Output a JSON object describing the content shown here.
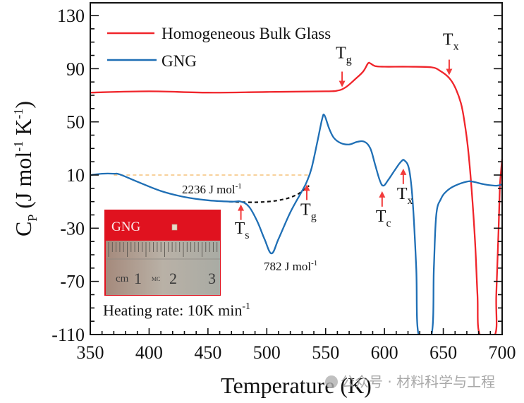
{
  "chart_data": {
    "type": "line",
    "title": "",
    "xlabel": "Temperature (K)",
    "ylabel": "C_P (J mol^-1 K^-1)",
    "ylabel_parts": {
      "main": "C",
      "sub": "P",
      "rest1": " (J mol",
      "sup1": "-1",
      "rest2": " K",
      "sup2": "-1",
      "rest3": ")"
    },
    "xlim": [
      350,
      700
    ],
    "ylim": [
      -110,
      130
    ],
    "xticks": [
      350,
      400,
      450,
      500,
      550,
      600,
      650,
      700
    ],
    "xtick_labels": [
      "350",
      "400",
      "450",
      "500",
      "550",
      "600",
      "650",
      "700"
    ],
    "yticks": [
      130,
      90,
      50,
      10,
      -30,
      -70,
      -110
    ],
    "ytick_labels": [
      "130",
      "90",
      "50",
      "10",
      "-30",
      "-70",
      "-110"
    ],
    "grid": false,
    "legend_position": "top-left",
    "series": [
      {
        "name": "Homogeneous Bulk Glass",
        "color": "#f0252b",
        "x": [
          350,
          400,
          450,
          500,
          550,
          560,
          567,
          575,
          582,
          586,
          588,
          592,
          600,
          620,
          640,
          648,
          655,
          660,
          665,
          668,
          671,
          674,
          677,
          679,
          681,
          694,
          695,
          697,
          698,
          699,
          700
        ],
        "y": [
          72,
          73,
          72,
          72.5,
          73,
          73.5,
          76,
          82,
          88,
          94,
          94,
          92,
          91.5,
          91.5,
          91,
          88,
          83,
          76,
          64,
          50,
          30,
          0,
          -40,
          -80,
          -110,
          -110,
          -80,
          -30,
          0,
          12,
          22
        ]
      },
      {
        "name": "GNG",
        "color": "#1f6fb5",
        "x": [
          350,
          360,
          370,
          375,
          390,
          410,
          430,
          450,
          470,
          478,
          485,
          492,
          498,
          504,
          510,
          520,
          530,
          534,
          538,
          543,
          547,
          549,
          553,
          557,
          563,
          570,
          577,
          583,
          588,
          592,
          596,
          599,
          603,
          609,
          614,
          617,
          621,
          624,
          627,
          629,
          640,
          642,
          644,
          648,
          653,
          660,
          670,
          675,
          685,
          695,
          700
        ],
        "y": [
          10,
          11,
          11,
          10.5,
          5,
          -2,
          -6.5,
          -9,
          -10,
          -10,
          -14,
          -25,
          -38,
          -49,
          -38,
          -18,
          -2,
          5,
          15,
          35,
          52,
          55,
          45,
          38,
          34,
          33,
          35,
          35,
          30,
          18,
          6,
          2,
          6,
          14,
          20,
          21,
          14,
          -10,
          -60,
          -110,
          -110,
          -60,
          -20,
          -8,
          -2,
          2,
          5,
          5,
          3,
          2,
          3
        ]
      }
    ],
    "reference_lines": [
      {
        "name": "gng-baseline",
        "style": "dotted",
        "color": "#f5c27a",
        "x": [
          370,
          536
        ],
        "y": [
          10,
          10
        ]
      },
      {
        "name": "extrapolated-baseline",
        "style": "dashed",
        "color": "#111111",
        "x": [
          468,
          490,
          510,
          525,
          536
        ],
        "y": [
          -10,
          -10.5,
          -9,
          -5,
          2
        ]
      }
    ],
    "annotations": [
      {
        "name": "tg-bulk",
        "label": "T",
        "sub": "g",
        "arrow_x": 564,
        "arrow_y": 74,
        "direction": "down",
        "label_y": 98
      },
      {
        "name": "tx-bulk",
        "label": "T",
        "sub": "x",
        "arrow_x": 655,
        "arrow_y": 83,
        "direction": "down",
        "label_y": 108
      },
      {
        "name": "ts-gng",
        "label": "T",
        "sub": "s",
        "arrow_x": 478,
        "arrow_y": -10,
        "direction": "up",
        "label_y": -34
      },
      {
        "name": "tg-gng",
        "label": "T",
        "sub": "g",
        "arrow_x": 534,
        "arrow_y": 5,
        "direction": "up",
        "label_y": -20
      },
      {
        "name": "tc-gng",
        "label": "T",
        "sub": "c",
        "arrow_x": 598,
        "arrow_y": 0,
        "direction": "up",
        "label_y": -25
      },
      {
        "name": "tx-gng",
        "label": "T",
        "sub": "x",
        "arrow_x": 616,
        "arrow_y": 17,
        "direction": "up",
        "label_y": -8
      }
    ],
    "text_annotations": [
      {
        "name": "enthalpy-2236",
        "text": "2236 J mol",
        "sup": "-1"
      },
      {
        "name": "enthalpy-782",
        "text": "782 J mol",
        "sup": "-1"
      },
      {
        "name": "heating-rate",
        "text": "Heating rate: 10K min",
        "sup": "-1"
      }
    ],
    "inset": {
      "label": "GNG",
      "ruler_labels": [
        "cm",
        "1",
        "2",
        "3"
      ],
      "ruler_mark": "MC"
    }
  },
  "watermark": {
    "text": "公众号 · 材料科学与工程"
  }
}
